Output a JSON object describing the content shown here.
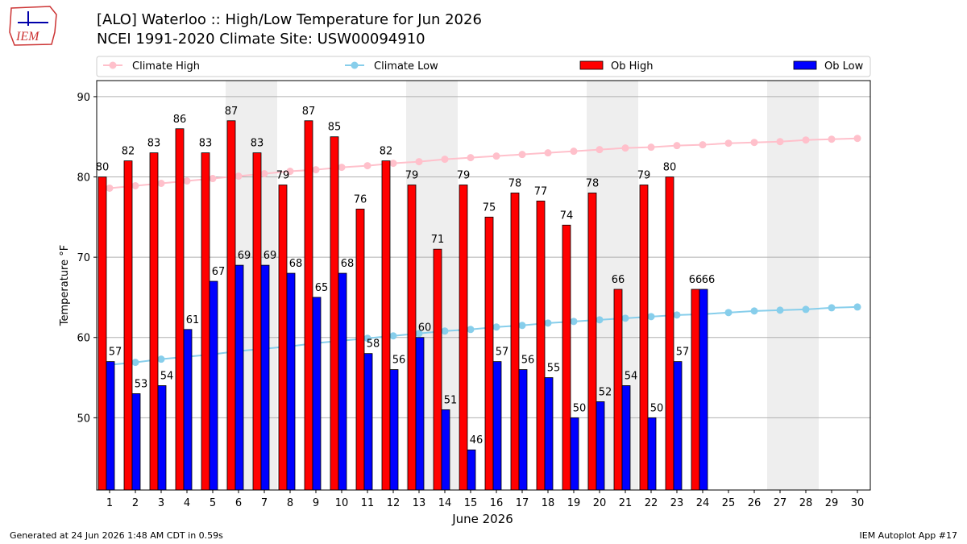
{
  "chart_data": {
    "type": "bar",
    "title": "[ALO] Waterloo :: High/Low Temperature for Jun 2026",
    "subtitle": "NCEI 1991-2020 Climate Site: USW00094910",
    "logo_text": "IEM",
    "xlabel": "June 2026",
    "ylabel": "Temperature °F",
    "footer_left": "Generated at 24 Jun 2026 1:48 AM CDT in 0.59s",
    "footer_right": "IEM Autoplot App #17",
    "x": [
      1,
      2,
      3,
      4,
      5,
      6,
      7,
      8,
      9,
      10,
      11,
      12,
      13,
      14,
      15,
      16,
      17,
      18,
      19,
      20,
      21,
      22,
      23,
      24,
      25,
      26,
      27,
      28,
      29,
      30
    ],
    "xlim": [
      0.5,
      30.5
    ],
    "xticks": [
      1,
      2,
      3,
      4,
      5,
      6,
      7,
      8,
      9,
      10,
      11,
      12,
      13,
      14,
      15,
      16,
      17,
      18,
      19,
      20,
      21,
      22,
      23,
      24,
      25,
      26,
      27,
      28,
      29,
      30
    ],
    "ylim": [
      41,
      92
    ],
    "yticks": [
      50,
      60,
      70,
      80,
      90
    ],
    "grid": true,
    "shaded_days": [
      6,
      7,
      13,
      14,
      20,
      21,
      27,
      28
    ],
    "series": [
      {
        "name": "Climate High",
        "kind": "line",
        "color": "#ffc0cb",
        "values": [
          78.6,
          78.9,
          79.2,
          79.5,
          79.8,
          80.1,
          80.4,
          80.7,
          80.9,
          81.2,
          81.4,
          81.7,
          81.9,
          82.2,
          82.4,
          82.6,
          82.8,
          83.0,
          83.2,
          83.4,
          83.6,
          83.7,
          83.9,
          84.0,
          84.2,
          84.3,
          84.4,
          84.6,
          84.7,
          84.8
        ]
      },
      {
        "name": "Climate Low",
        "kind": "line",
        "color": "#87ceeb",
        "values": [
          56.6,
          56.9,
          57.3,
          57.6,
          57.9,
          58.3,
          58.6,
          58.9,
          59.3,
          59.6,
          59.9,
          60.2,
          60.5,
          60.8,
          61.0,
          61.3,
          61.5,
          61.8,
          62.0,
          62.2,
          62.4,
          62.6,
          62.8,
          62.9,
          63.1,
          63.3,
          63.4,
          63.5,
          63.7,
          63.8
        ]
      },
      {
        "name": "Ob High",
        "kind": "bar",
        "color": "#ff0000",
        "values": [
          80,
          82,
          83,
          86,
          83,
          87,
          83,
          79,
          87,
          85,
          76,
          82,
          79,
          71,
          79,
          75,
          78,
          77,
          74,
          78,
          66,
          79,
          80,
          66,
          null,
          null,
          null,
          null,
          null,
          null
        ]
      },
      {
        "name": "Ob Low",
        "kind": "bar",
        "color": "#0000ff",
        "values": [
          57,
          53,
          54,
          61,
          67,
          69,
          69,
          68,
          65,
          68,
          58,
          56,
          60,
          51,
          46,
          57,
          56,
          55,
          50,
          52,
          54,
          50,
          57,
          66,
          null,
          null,
          null,
          null,
          null,
          null
        ]
      }
    ]
  }
}
